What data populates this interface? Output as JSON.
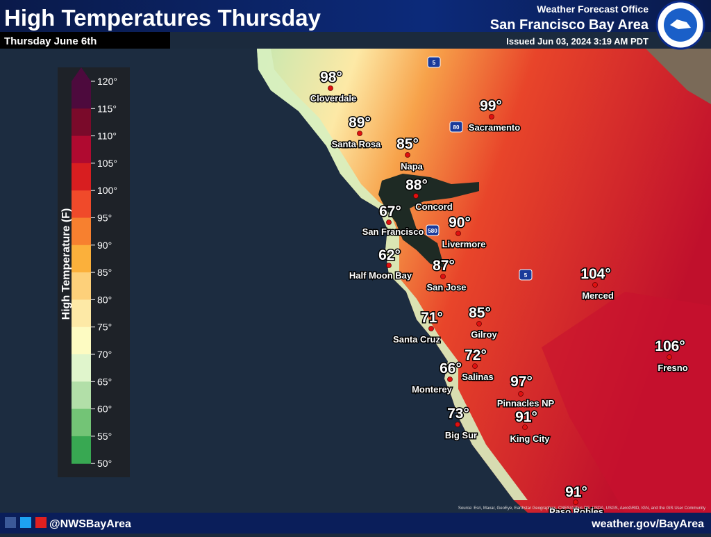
{
  "header": {
    "title": "High Temperatures Thursday",
    "subtitle": "Thursday June 6th",
    "office_line1": "Weather Forecast Office",
    "office_line2": "San Francisco Bay Area",
    "issued": "Issued Jun 03, 2024 3:19 AM PDT"
  },
  "legend": {
    "title": "High Temperature (F)",
    "labels": [
      "120°",
      "115°",
      "110°",
      "105°",
      "100°",
      "95°",
      "90°",
      "85°",
      "80°",
      "75°",
      "70°",
      "65°",
      "60°",
      "55°",
      "50°"
    ]
  },
  "cities": [
    {
      "name": "Cloverdale",
      "temp": "98°"
    },
    {
      "name": "Santa Rosa",
      "temp": "89°"
    },
    {
      "name": "Napa",
      "temp": "85°"
    },
    {
      "name": "Sacramento",
      "temp": "99°"
    },
    {
      "name": "Concord",
      "temp": "88°"
    },
    {
      "name": "San Francisco",
      "temp": "67°"
    },
    {
      "name": "Livermore",
      "temp": "90°"
    },
    {
      "name": "Half Moon Bay",
      "temp": "62°"
    },
    {
      "name": "San Jose",
      "temp": "87°"
    },
    {
      "name": "Merced",
      "temp": "104°"
    },
    {
      "name": "Santa Cruz",
      "temp": "71°"
    },
    {
      "name": "Gilroy",
      "temp": "85°"
    },
    {
      "name": "Salinas",
      "temp": "72°"
    },
    {
      "name": "Monterey",
      "temp": "66°"
    },
    {
      "name": "Fresno",
      "temp": "106°"
    },
    {
      "name": "Pinnacles NP",
      "temp": "97°"
    },
    {
      "name": "King City",
      "temp": "91°"
    },
    {
      "name": "Big Sur",
      "temp": "73°"
    },
    {
      "name": "Paso Robles",
      "temp": "91°"
    }
  ],
  "highways": [
    "5",
    "80",
    "580",
    "5"
  ],
  "source": "Source: Esri, Maxar, GeoEye, Earthstar Geographics, CNES/Airbus DS, USDA, USGS, AeroGRID, IGN, and the GIS User Community",
  "footer": {
    "social": "@NWSBayArea",
    "website": "weather.gov/BayArea"
  }
}
